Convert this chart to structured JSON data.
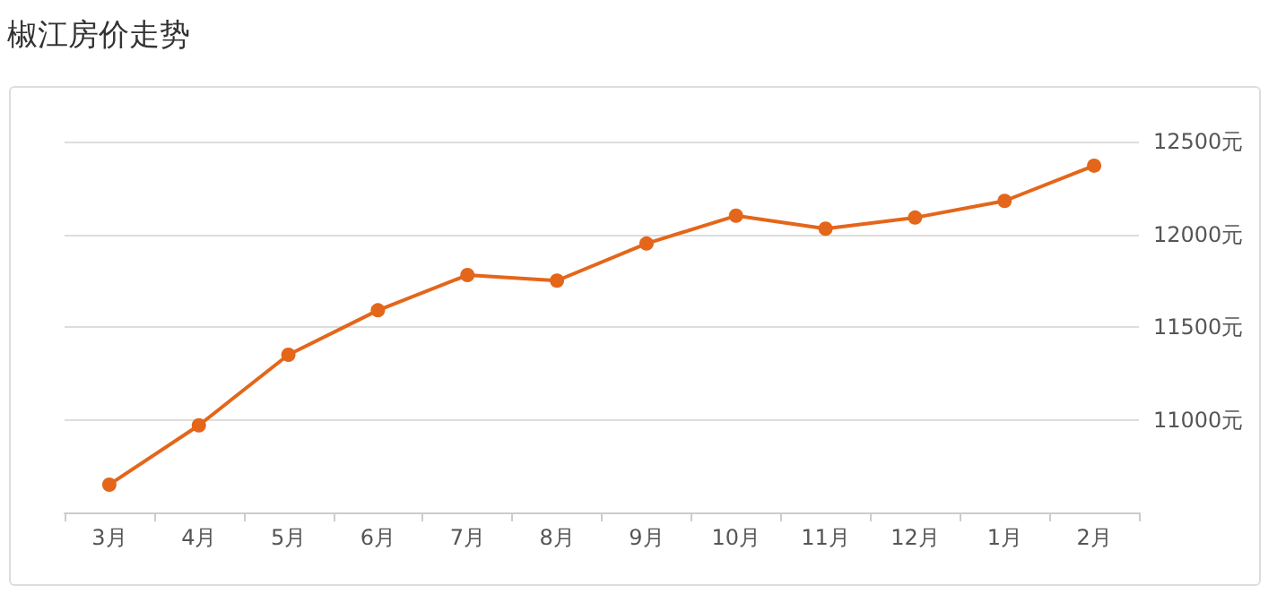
{
  "chart_data": {
    "type": "line",
    "title": "椒江房价走势",
    "categories": [
      "3月",
      "4月",
      "5月",
      "6月",
      "7月",
      "8月",
      "9月",
      "10月",
      "11月",
      "12月",
      "1月",
      "2月"
    ],
    "series": [
      {
        "color": "#e4661a",
        "values": [
          10650,
          10970,
          11350,
          11590,
          11780,
          11750,
          11950,
          12100,
          12030,
          12090,
          12180,
          12370
        ]
      }
    ],
    "ylim": [
      10500,
      12500
    ],
    "yticks": [
      {
        "value": 10500,
        "label": null
      },
      {
        "value": 11000,
        "label": "11000元"
      },
      {
        "value": 11500,
        "label": "11500元"
      },
      {
        "value": 12000,
        "label": "12000元"
      },
      {
        "value": 12500,
        "label": "12500元"
      }
    ],
    "grid": "y",
    "marker": "circle",
    "line_style": "solid"
  }
}
